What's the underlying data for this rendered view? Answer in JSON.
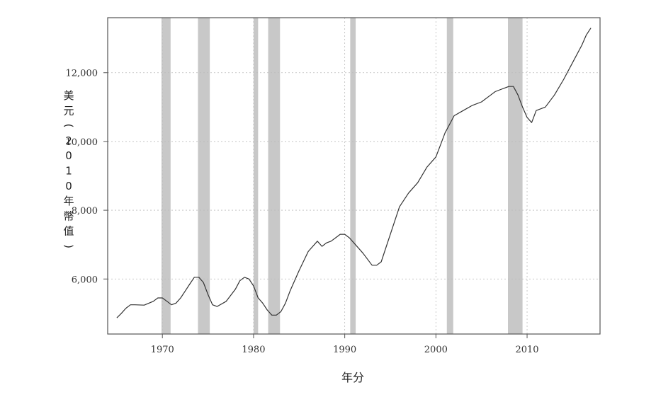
{
  "chart_data": {
    "type": "line",
    "title": "",
    "xlabel": "年分",
    "ylabel": "美元（2010年幣值）",
    "xlim": [
      1964,
      2018
    ],
    "ylim": [
      4400,
      13600
    ],
    "x_ticks": [
      1970,
      1980,
      1990,
      2000,
      2010
    ],
    "x_tick_labels": [
      "1970",
      "1980",
      "1990",
      "2000",
      "2010"
    ],
    "y_ticks": [
      6000,
      8000,
      10000,
      12000
    ],
    "y_tick_labels": [
      "6,000",
      "8,000",
      "10,000",
      "12,000"
    ],
    "grid": true,
    "legend": "none",
    "line_color": "#333333",
    "shade_color": "#c8c8c8",
    "recessions": [
      [
        1969.9,
        1970.9
      ],
      [
        1973.9,
        1975.2
      ],
      [
        1980.0,
        1980.5
      ],
      [
        1981.6,
        1982.9
      ],
      [
        1990.6,
        1991.2
      ],
      [
        2001.2,
        2001.9
      ],
      [
        2007.9,
        2009.5
      ]
    ],
    "series": [
      {
        "x": [
          1965.0,
          1965.5,
          1966.0,
          1966.5,
          1967.0,
          1968.0,
          1969.0,
          1969.5,
          1970.0,
          1970.5,
          1971.0,
          1971.5,
          1972.0,
          1972.5,
          1973.0,
          1973.5,
          1974.0,
          1974.5,
          1975.0,
          1975.5,
          1976.0,
          1977.0,
          1978.0,
          1978.5,
          1979.0,
          1979.5,
          1980.0,
          1980.5,
          1981.0,
          1981.5,
          1982.0,
          1982.5,
          1983.0,
          1983.5,
          1984.0,
          1985.0,
          1986.0,
          1987.0,
          1987.5,
          1988.0,
          1988.5,
          1989.0,
          1989.5,
          1990.0,
          1990.5,
          1991.0,
          1992.0,
          1993.0,
          1993.5,
          1994.0,
          1995.0,
          1996.0,
          1997.0,
          1998.0,
          1999.0,
          2000.0,
          2000.5,
          2001.0,
          2002.0,
          2003.0,
          2004.0,
          2005.0,
          2006.0,
          2006.5,
          2007.0,
          2007.5,
          2008.0,
          2008.5,
          2009.0,
          2009.5,
          2010.0,
          2010.5,
          2011.0,
          2012.0,
          2013.0,
          2014.0,
          2015.0,
          2016.0,
          2016.5,
          2017.0
        ],
        "y": [
          4870,
          5000,
          5150,
          5250,
          5250,
          5240,
          5350,
          5450,
          5450,
          5350,
          5250,
          5300,
          5450,
          5650,
          5850,
          6050,
          6050,
          5900,
          5550,
          5250,
          5200,
          5350,
          5700,
          5950,
          6050,
          6000,
          5800,
          5450,
          5300,
          5100,
          4950,
          4950,
          5050,
          5300,
          5650,
          6250,
          6800,
          7100,
          6950,
          7050,
          7100,
          7200,
          7300,
          7300,
          7200,
          7050,
          6750,
          6400,
          6400,
          6500,
          7300,
          8100,
          8500,
          8800,
          9250,
          9550,
          9900,
          10250,
          10750,
          10900,
          11050,
          11150,
          11350,
          11450,
          11500,
          11550,
          11600,
          11600,
          11350,
          11000,
          10700,
          10550,
          10900,
          11000,
          11350,
          11800,
          12300,
          12800,
          13100,
          13300
        ]
      }
    ]
  }
}
